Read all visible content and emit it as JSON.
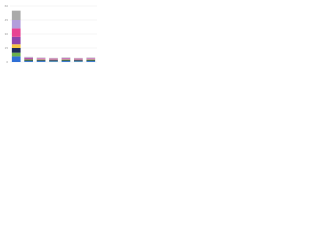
{
  "chart_data": {
    "type": "stacked_bar",
    "categories": [
      null,
      null,
      null,
      null,
      null,
      null,
      null
    ],
    "series": [
      {
        "color": "#2f6fd6",
        "values": [
          6,
          1,
          1,
          0.8,
          1,
          0.8,
          1
        ]
      },
      {
        "color": "#6ab04c",
        "values": [
          4,
          0.6,
          0.5,
          0.5,
          0.6,
          0.5,
          0.6
        ]
      },
      {
        "color": "#1b2a5a",
        "values": [
          5,
          1,
          0.8,
          0.8,
          0.8,
          0.8,
          0.8
        ]
      },
      {
        "color": "#f4c542",
        "values": [
          4,
          0.5,
          0.5,
          0.4,
          0.5,
          0.4,
          0.5
        ]
      },
      {
        "color": "#8e44ad",
        "values": [
          8,
          0.8,
          0.6,
          0.6,
          0.7,
          0.6,
          0.6
        ]
      },
      {
        "color": "#e84393",
        "values": [
          9,
          0.6,
          0.5,
          0.5,
          0.5,
          0.5,
          0.5
        ]
      },
      {
        "color": "#b39ddb",
        "values": [
          9,
          0.5,
          0.4,
          0.4,
          0.4,
          0.4,
          0.4
        ]
      },
      {
        "color": "#aaaaaa",
        "values": [
          10,
          0.5,
          0.4,
          0.4,
          0.4,
          0.4,
          0.4
        ]
      }
    ],
    "ylim": [
      0,
      60
    ],
    "yticks": [
      0,
      15,
      30,
      45,
      60
    ],
    "grid": true
  }
}
